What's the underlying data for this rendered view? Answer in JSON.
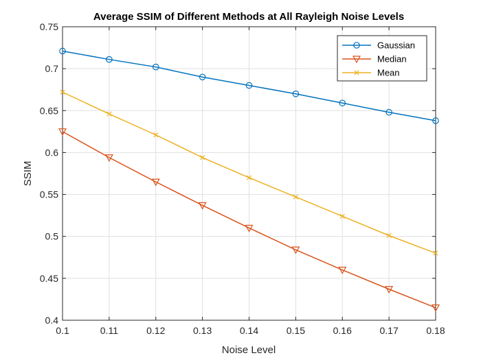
{
  "chart_data": {
    "type": "line",
    "title": "Average SSIM of Different Methods at All Rayleigh Noise Levels",
    "xlabel": "Noise Level",
    "ylabel": "SSIM",
    "x": [
      0.1,
      0.11,
      0.12,
      0.13,
      0.14,
      0.15,
      0.16,
      0.17,
      0.18
    ],
    "xlim": [
      0.1,
      0.18
    ],
    "ylim": [
      0.4,
      0.75
    ],
    "xticks": [
      "0.1",
      "0.11",
      "0.12",
      "0.13",
      "0.14",
      "0.15",
      "0.16",
      "0.17",
      "0.18"
    ],
    "yticks": [
      "0.4",
      "0.45",
      "0.5",
      "0.55",
      "0.6",
      "0.65",
      "0.7",
      "0.75"
    ],
    "grid": true,
    "legend_position": "top-right",
    "series": [
      {
        "name": "Gaussian",
        "color": "#0072BD",
        "marker": "circle",
        "values": [
          0.721,
          0.711,
          0.702,
          0.69,
          0.68,
          0.67,
          0.659,
          0.648,
          0.638
        ]
      },
      {
        "name": "Median",
        "color": "#D95319",
        "marker": "triangle-down",
        "values": [
          0.625,
          0.594,
          0.565,
          0.537,
          0.51,
          0.484,
          0.46,
          0.437,
          0.415
        ]
      },
      {
        "name": "Mean",
        "color": "#EDB120",
        "marker": "x",
        "values": [
          0.672,
          0.646,
          0.621,
          0.594,
          0.57,
          0.547,
          0.524,
          0.501,
          0.48
        ]
      }
    ]
  }
}
